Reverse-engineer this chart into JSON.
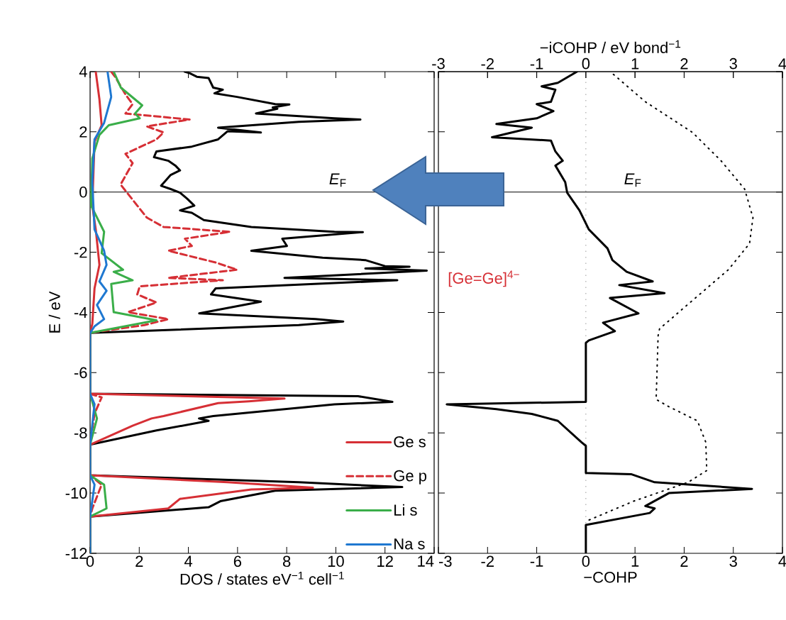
{
  "chart_data": [
    {
      "type": "line",
      "xlabel": "DOS / states eV$^{−1}$ cell$^{−1}$",
      "ylabel": "E / eV",
      "xlim": [
        0,
        14
      ],
      "xticks": [
        0,
        2,
        4,
        6,
        8,
        10,
        12,
        14
      ],
      "ylim": [
        -12,
        4
      ],
      "yticks": [
        -12,
        -10,
        -8,
        -6,
        -4,
        -2,
        0,
        2,
        4
      ],
      "legend": "bottom right",
      "ref_lines": [
        {
          "axis": "y",
          "value": 0,
          "label": "*E*$_{F}$",
          "color": "#000000"
        }
      ],
      "series": [
        {
          "color": "#000000",
          "x": [
            3.85,
            4.05,
            4.34,
            4.82,
            5.01,
            5.4,
            5.06,
            5.98,
            7.53,
            8.11,
            7.43,
            7.62,
            6.75,
            9.94,
            11.0,
            8.49,
            5.21,
            6.95,
            5.59,
            5.21,
            4.14,
            2.7,
            2.6,
            3.18,
            3.47,
            3.66,
            3.28,
            2.89,
            3.28,
            3.66,
            3.95,
            4.24,
            3.66,
            4.14,
            4.63,
            6.56,
            9.94,
            11.1,
            7.82,
            8.01,
            6.56,
            9.46,
            11.2,
            12.0,
            13.0,
            11.2,
            13.7,
            7.91,
            12.5,
            5.11,
            4.92,
            6.95,
            4.44,
            9.17,
            10.3,
            8.49,
            0,
            0,
            10.9,
            12.3,
            9.94,
            5.01,
            4.43,
            4.82,
            2.7,
            0,
            0,
            8.49,
            12.7,
            7.53,
            5.3,
            4.82,
            0,
            0
          ],
          "values": [
            4.0,
            3.95,
            3.83,
            3.79,
            3.47,
            3.4,
            3.28,
            3.16,
            2.92,
            2.91,
            2.81,
            2.77,
            2.61,
            2.45,
            2.41,
            2.33,
            2.14,
            1.98,
            2.02,
            1.75,
            1.51,
            1.35,
            1.16,
            1.04,
            0.88,
            0.72,
            0.57,
            0.21,
            0.1,
            -0.02,
            -0.22,
            -0.45,
            -0.61,
            -0.69,
            -0.93,
            -1.16,
            -1.32,
            -1.33,
            -1.55,
            -1.79,
            -1.95,
            -2.18,
            -2.26,
            -2.46,
            -2.48,
            -2.54,
            -2.61,
            -2.85,
            -2.93,
            -3.2,
            -3.4,
            -3.64,
            -4.03,
            -4.22,
            -4.3,
            -4.42,
            -4.68,
            -6.7,
            -6.78,
            -6.97,
            -7.05,
            -7.44,
            -7.52,
            -7.6,
            -7.92,
            -8.39,
            -9.41,
            -9.64,
            -9.8,
            -9.92,
            -10.27,
            -10.47,
            -10.78,
            -12
          ]
        },
        {
          "name": "Ge s",
          "color": "#d62f35",
          "line_style": "solid",
          "x": [
            0.23,
            0.38,
            0.47,
            0.18,
            0.09,
            0.23,
            0.38,
            0.18,
            0.09,
            0,
            0,
            7.91,
            6.46,
            5.21,
            2.99,
            2.5,
            1.73,
            0,
            0,
            5.59,
            9.07,
            6.56,
            3.66,
            3.18,
            0,
            0
          ],
          "values": [
            4.0,
            3.08,
            2.22,
            1.67,
            -0.45,
            -1.24,
            -2.42,
            -3.2,
            -4.38,
            -4.68,
            -6.7,
            -6.86,
            -6.95,
            -7.01,
            -7.44,
            -7.52,
            -7.76,
            -8.39,
            -9.41,
            -9.64,
            -9.82,
            -9.88,
            -10.19,
            -10.51,
            -10.78,
            -12
          ]
        },
        {
          "name": "Ge p",
          "color": "#d62f35",
          "line_style": "dashed",
          "x": [
            0.86,
            1.05,
            1.44,
            1.73,
            1.44,
            4.05,
            2.31,
            2.99,
            2.7,
            1.44,
            1.73,
            1.24,
            1.92,
            2.31,
            2.99,
            5.69,
            3.86,
            4.14,
            3.18,
            5.11,
            5.98,
            3.18,
            5.4,
            2.02,
            1.92,
            2.7,
            1.54,
            3.18,
            2.21,
            0,
            0,
            0.47,
            0.18,
            0,
            0,
            0.47,
            0.09,
            0,
            0
          ],
          "values": [
            4.0,
            3.79,
            3.24,
            2.92,
            2.61,
            2.41,
            2.18,
            1.98,
            1.75,
            1.27,
            0.96,
            0.25,
            -0.45,
            -0.85,
            -1.16,
            -1.32,
            -1.55,
            -1.79,
            -1.95,
            -2.34,
            -2.58,
            -2.85,
            -2.93,
            -3.13,
            -3.4,
            -3.67,
            -3.99,
            -4.22,
            -4.42,
            -4.68,
            -6.7,
            -6.82,
            -7.36,
            -8.39,
            -9.41,
            -9.72,
            -10.51,
            -10.78,
            -12
          ]
        },
        {
          "name": "Li s",
          "color": "#3aae49",
          "line_style": "solid",
          "x": [
            0.96,
            1.25,
            2.12,
            1.83,
            2.02,
            0.76,
            0.38,
            0.09,
            0.04,
            0.57,
            0.47,
            1.34,
            0.96,
            1.73,
            0.86,
            0.96,
            2.7,
            0,
            0,
            0.28,
            0,
            0,
            0.57,
            0.67,
            0,
            0
          ],
          "values": [
            4.0,
            3.47,
            2.88,
            2.61,
            2.45,
            2.22,
            1.9,
            1.12,
            -0.45,
            -1.32,
            -2.03,
            -2.58,
            -2.65,
            -2.93,
            -3.05,
            -3.99,
            -4.26,
            -4.68,
            -6.7,
            -7.52,
            -8.39,
            -9.41,
            -9.72,
            -10.51,
            -10.78,
            -12
          ]
        },
        {
          "name": "Na s",
          "color": "#1f78d1",
          "line_style": "solid",
          "x": [
            0.71,
            0.86,
            0.57,
            0.18,
            0.09,
            0.18,
            0.57,
            0.67,
            0.38,
            0.67,
            0.28,
            0.57,
            0.18,
            0,
            0,
            0.18,
            0,
            0,
            0.18,
            0,
            0
          ],
          "values": [
            4.0,
            3.16,
            2.3,
            1.75,
            0.33,
            -1.24,
            -1.95,
            -2.42,
            -2.97,
            -3.28,
            -3.75,
            -4.22,
            -4.46,
            -4.68,
            -6.7,
            -7.05,
            -8.39,
            -9.41,
            -9.72,
            -10.78,
            -12
          ]
        }
      ]
    },
    {
      "type": "line",
      "xlabel": "−COHP",
      "x2label": "−iCOHP / eV bond$^{−1}$",
      "xlim": [
        -3,
        4
      ],
      "xticks": [
        -3,
        -2,
        -1,
        0,
        1,
        2,
        3,
        4
      ],
      "x2lim": [
        -3,
        4
      ],
      "x2ticks": [
        -3,
        -2,
        -1,
        0,
        1,
        2,
        3,
        4
      ],
      "ylim": [
        -12,
        4
      ],
      "yticks": [
        -12,
        -10,
        -8,
        -6,
        -4,
        -2,
        0,
        2,
        4
      ],
      "tick_labels": "x",
      "annotations": [
        "[Ge=Ge]$^{4−}$"
      ],
      "ref_lines": [
        {
          "axis": "y",
          "value": 0,
          "label": "*E*$_{F}$",
          "color": "#000000"
        },
        {
          "axis": "x",
          "value": 0,
          "color": "#999999",
          "line_style": "dotted"
        }
      ],
      "series": [
        {
          "color": "#000000",
          "line_style": "solid",
          "x": [
            -0.18,
            -0.57,
            -0.9,
            -0.62,
            -0.71,
            -1.0,
            -0.66,
            -1.0,
            -1.82,
            -1.1,
            -1.91,
            -0.71,
            -0.62,
            -0.47,
            -0.62,
            -0.42,
            -0.38,
            -0.13,
            0.06,
            0.44,
            0.54,
            0.83,
            1.36,
            0.68,
            1.6,
            0.49,
            1.07,
            0.35,
            0.59,
            0.06,
            0,
            0,
            -2.83,
            -1.82,
            -1.1,
            -0.57,
            -0.09,
            0,
            0,
            0.92,
            1.4,
            3.38,
            1.69,
            1.21,
            1.4,
            1.3,
            0,
            0
          ],
          "values": [
            4.0,
            3.63,
            3.51,
            3.4,
            3.0,
            2.92,
            2.69,
            2.45,
            2.26,
            2.14,
            1.82,
            1.71,
            1.35,
            1.04,
            0.88,
            0.33,
            -0.02,
            -0.61,
            -1.24,
            -1.87,
            -2.26,
            -2.65,
            -2.97,
            -3.09,
            -3.36,
            -3.52,
            -4.03,
            -4.34,
            -4.62,
            -4.93,
            -5.01,
            -6.97,
            -7.05,
            -7.21,
            -7.37,
            -7.6,
            -8.31,
            -8.43,
            -9.33,
            -9.37,
            -9.64,
            -9.86,
            -10.0,
            -10.43,
            -10.51,
            -10.66,
            -11.06,
            -12
          ]
        },
        {
          "color": "#000000",
          "line_style": "dotted",
          "axis": "x2",
          "x": [
            0.56,
            1.21,
            2.17,
            2.75,
            3.23,
            3.4,
            3.33,
            2.9,
            2.17,
            1.5,
            1.47,
            1.43,
            1.69,
            2.27,
            2.44,
            2.46,
            2.08,
            0.97,
            0
          ],
          "values": [
            3.91,
            3.0,
            1.98,
            1.04,
            0.1,
            -0.85,
            -1.71,
            -2.58,
            -3.6,
            -4.54,
            -4.77,
            -6.89,
            -7.13,
            -7.6,
            -8.31,
            -9.25,
            -9.64,
            -10.27,
            -10.94
          ]
        }
      ]
    }
  ]
}
